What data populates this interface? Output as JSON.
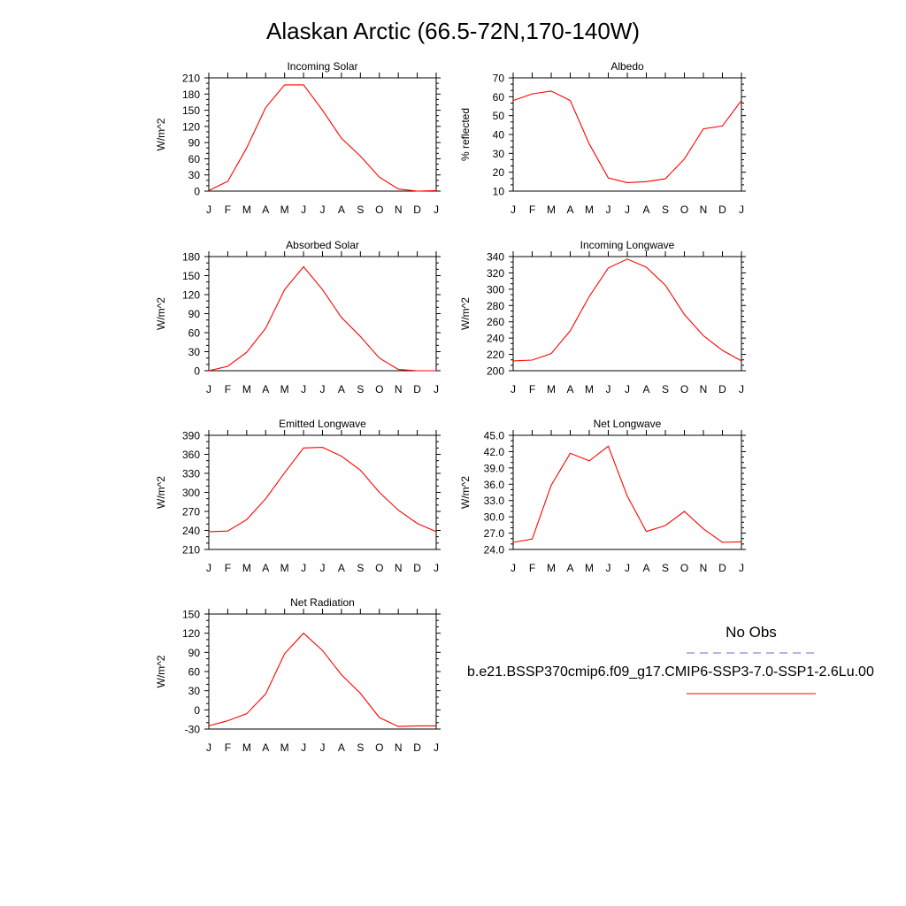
{
  "title": "Alaskan Arctic (66.5-72N,170-140W)",
  "legend": {
    "title": "No Obs",
    "entry_label": "b.e21.BSSP370cmip6.f09_g17.CMIP6-SSP3-7.0-SSP1-2.6Lu.00",
    "obs_color": "#6b6bd6",
    "model_color": "#ff0000"
  },
  "month_labels": [
    "J",
    "F",
    "M",
    "A",
    "M",
    "J",
    "J",
    "A",
    "S",
    "O",
    "N",
    "D",
    "J"
  ],
  "chart_data": [
    {
      "type": "line",
      "title": "Incoming Solar",
      "ylabel": "W/m^2",
      "ylim": [
        0,
        210
      ],
      "yticks": [
        "0",
        "30",
        "60",
        "90",
        "120",
        "150",
        "180",
        "210"
      ],
      "x": [
        "J",
        "F",
        "M",
        "A",
        "M",
        "J",
        "J",
        "A",
        "S",
        "O",
        "N",
        "D",
        "J"
      ],
      "series": [
        {
          "values": [
            1,
            18,
            80,
            155,
            197,
            197,
            150,
            98,
            65,
            26,
            4,
            0,
            1
          ],
          "color": "#ff0000"
        }
      ]
    },
    {
      "type": "line",
      "title": "Albedo",
      "ylabel": "% reflected",
      "ylim": [
        10,
        70
      ],
      "yticks": [
        "10",
        "20",
        "30",
        "40",
        "50",
        "60",
        "70"
      ],
      "x": [
        "J",
        "F",
        "M",
        "A",
        "M",
        "J",
        "J",
        "A",
        "S",
        "O",
        "N",
        "D",
        "J"
      ],
      "series": [
        {
          "values": [
            58,
            61.5,
            63,
            58,
            35,
            17,
            14.5,
            15,
            16.5,
            27,
            43,
            44.5,
            58
          ],
          "color": "#ff0000"
        }
      ]
    },
    {
      "type": "line",
      "title": "Absorbed Solar",
      "ylabel": "W/m^2",
      "ylim": [
        0,
        180
      ],
      "yticks": [
        "0",
        "30",
        "60",
        "90",
        "120",
        "150",
        "180"
      ],
      "x": [
        "J",
        "F",
        "M",
        "A",
        "M",
        "J",
        "J",
        "A",
        "S",
        "O",
        "N",
        "D",
        "J"
      ],
      "series": [
        {
          "values": [
            0,
            7,
            29,
            67,
            128,
            164,
            128,
            84,
            54,
            20,
            2,
            0,
            0
          ],
          "color": "#ff0000"
        }
      ]
    },
    {
      "type": "line",
      "title": "Incoming Longwave",
      "ylabel": "W/m^2",
      "ylim": [
        200,
        340
      ],
      "yticks": [
        "200",
        "220",
        "240",
        "260",
        "280",
        "300",
        "320",
        "340"
      ],
      "x": [
        "J",
        "F",
        "M",
        "A",
        "M",
        "J",
        "J",
        "A",
        "S",
        "O",
        "N",
        "D",
        "J"
      ],
      "series": [
        {
          "values": [
            212,
            213,
            221,
            249,
            291,
            326,
            337,
            327,
            305,
            269,
            243,
            225,
            212
          ],
          "color": "#ff0000"
        }
      ]
    },
    {
      "type": "line",
      "title": "Emitted Longwave",
      "ylabel": "W/m^2",
      "ylim": [
        210,
        390
      ],
      "yticks": [
        "210",
        "240",
        "270",
        "300",
        "330",
        "360",
        "390"
      ],
      "x": [
        "J",
        "F",
        "M",
        "A",
        "M",
        "J",
        "J",
        "A",
        "S",
        "O",
        "N",
        "D",
        "J"
      ],
      "series": [
        {
          "values": [
            238,
            239,
            257,
            290,
            331,
            370,
            371,
            357,
            335,
            300,
            272,
            251,
            238
          ],
          "color": "#ff0000"
        }
      ]
    },
    {
      "type": "line",
      "title": "Net Longwave",
      "ylabel": "W/m^2",
      "ylim": [
        24,
        45
      ],
      "yticks": [
        "24.0",
        "27.0",
        "30.0",
        "33.0",
        "36.0",
        "39.0",
        "42.0",
        "45.0"
      ],
      "x": [
        "J",
        "F",
        "M",
        "A",
        "M",
        "J",
        "J",
        "A",
        "S",
        "O",
        "N",
        "D",
        "J"
      ],
      "series": [
        {
          "values": [
            25.3,
            25.9,
            35.8,
            41.7,
            40.3,
            43.0,
            33.8,
            27.3,
            28.4,
            31.0,
            27.8,
            25.3,
            25.4
          ],
          "color": "#ff0000"
        }
      ]
    },
    {
      "type": "line",
      "title": "Net Radiation",
      "ylabel": "W/m^2",
      "ylim": [
        -30,
        150
      ],
      "yticks": [
        "-30",
        "0",
        "30",
        "60",
        "90",
        "120",
        "150"
      ],
      "x": [
        "J",
        "F",
        "M",
        "A",
        "M",
        "J",
        "J",
        "A",
        "S",
        "O",
        "N",
        "D",
        "J"
      ],
      "series": [
        {
          "values": [
            -25,
            -17,
            -6,
            25,
            88,
            120,
            93,
            55,
            26,
            -12,
            -26,
            -25,
            -25
          ],
          "color": "#ff0000"
        }
      ]
    }
  ]
}
